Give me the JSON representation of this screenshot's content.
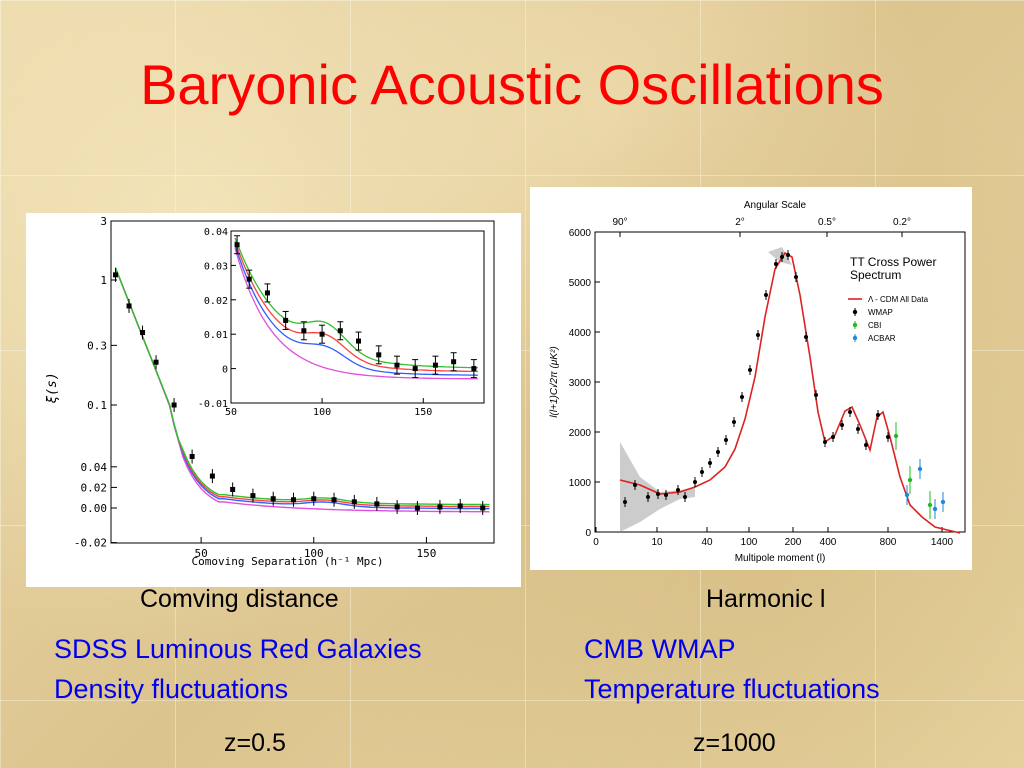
{
  "slide": {
    "title": "Baryonic Acoustic Oscillations",
    "left_caption": "Comving distance",
    "left_desc_line1": "SDSS Luminous Red Galaxies",
    "left_desc_line2": "Density fluctuations",
    "left_redshift": "z=0.5",
    "right_caption": "Harmonic l",
    "right_desc_line1": "CMB WMAP",
    "right_desc_line2": "Temperature fluctuations",
    "right_redshift": "z=1000",
    "title_color": "#ff0000",
    "desc_color": "#0000ee"
  },
  "chart_data": [
    {
      "type": "line",
      "xlabel": "Comoving Separation (h⁻¹ Mpc)",
      "ylabel": "ξ(s)",
      "xlim": [
        10,
        180
      ],
      "x_ticks": [
        "50",
        "100",
        "150"
      ],
      "y_ticks": [
        "3",
        "1",
        "0.3",
        "0.1",
        "0.04",
        "0.02",
        "0.00",
        "-0.02"
      ],
      "data_points": {
        "x": [
          12,
          18,
          24,
          30,
          38,
          46,
          55,
          64,
          73,
          82,
          91,
          100,
          109,
          118,
          128,
          137,
          146,
          156,
          165,
          175
        ],
        "y": [
          1.1,
          0.62,
          0.38,
          0.22,
          0.1,
          0.05,
          0.031,
          0.018,
          0.012,
          0.009,
          0.008,
          0.009,
          0.008,
          0.006,
          0.004,
          0.001,
          0.0,
          0.001,
          0.002,
          0.0
        ]
      },
      "inset": {
        "xlim": [
          55,
          180
        ],
        "ylim": [
          -0.01,
          0.04
        ],
        "x_ticks": [
          "50",
          "100",
          "150"
        ],
        "y_ticks": [
          "0.04",
          "0.03",
          "0.02",
          "0.01",
          "0",
          "-0.01"
        ],
        "data_points": {
          "x": [
            58,
            64,
            73,
            82,
            91,
            100,
            109,
            118,
            128,
            137,
            146,
            156,
            165,
            175
          ],
          "y": [
            0.036,
            0.026,
            0.022,
            0.014,
            0.011,
            0.01,
            0.011,
            0.008,
            0.004,
            0.001,
            0.0,
            0.001,
            0.002,
            0.0
          ]
        }
      },
      "series_colors": [
        "#e050e0",
        "#3060ff",
        "#ff4040",
        "#30c030"
      ]
    },
    {
      "type": "line",
      "title": "TT Cross Power Spectrum",
      "top_axis_label": "Angular Scale",
      "top_ticks": [
        "90°",
        "2°",
        "0.5°",
        "0.2°"
      ],
      "xlabel": "Multipole moment (l)",
      "ylabel": "l(l+1)Cₗ/2π (μK²)",
      "x_ticks": [
        "0",
        "10",
        "40",
        "100",
        "200",
        "400",
        "800",
        "1400"
      ],
      "y_ticks": [
        "0",
        "1000",
        "2000",
        "3000",
        "4000",
        "5000",
        "6000"
      ],
      "ylim": [
        0,
        6000
      ],
      "legend": [
        "Λ - CDM All Data",
        "WMAP",
        "CBI",
        "ACBAR"
      ],
      "legend_colors": [
        "#dd2222",
        "#000000",
        "#22bb22",
        "#2288dd"
      ],
      "wmap_points": {
        "x": [
          3,
          5,
          8,
          10,
          12,
          15,
          20,
          25,
          30,
          40,
          50,
          60,
          80,
          100,
          120,
          140,
          160,
          180,
          200,
          220,
          250,
          280,
          320,
          360,
          400,
          450,
          500,
          550,
          600,
          650,
          700
        ],
        "y": [
          560,
          950,
          700,
          750,
          800,
          820,
          700,
          1100,
          1250,
          1400,
          1350,
          1600,
          1850,
          2200,
          2800,
          3700,
          4600,
          5400,
          5600,
          5650,
          4800,
          3600,
          2000,
          1650,
          1750,
          2100,
          2450,
          2250,
          1700,
          1800,
          1700
        ]
      },
      "cbi_points": {
        "x": [
          800,
          1000,
          1200
        ],
        "y": [
          1900,
          1050,
          700
        ]
      },
      "acbar_points": {
        "x": [
          900,
          1100,
          1300,
          1450
        ],
        "y": [
          750,
          1250,
          550,
          300
        ]
      }
    }
  ]
}
